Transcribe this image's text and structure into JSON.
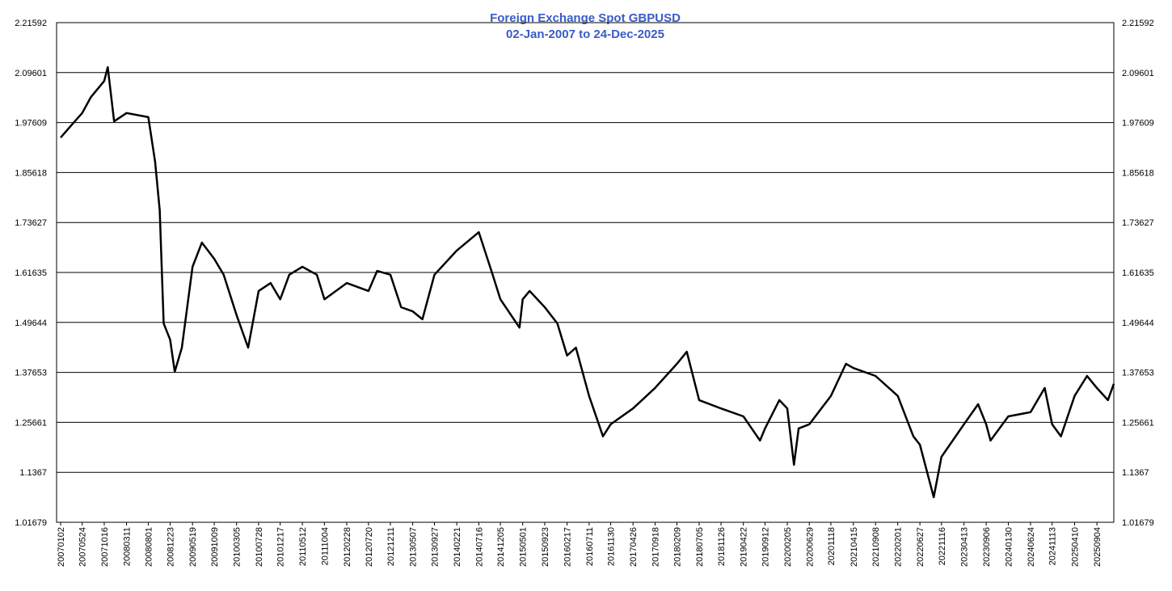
{
  "chart_data": {
    "type": "line",
    "title": "Foreign Exchange Spot GBPUSD",
    "subtitle": "02-Jan-2007 to 24-Dec-2025",
    "color": "#000000",
    "grid": true,
    "ylim": [
      1.01679,
      2.21592
    ],
    "yticks": [
      1.01679,
      1.1367,
      1.25661,
      1.37653,
      1.49644,
      1.61635,
      1.73627,
      1.85618,
      1.97609,
      2.09601,
      2.21592
    ],
    "xticks": [
      "20070102",
      "20070524",
      "20071016",
      "20080311",
      "20080801",
      "20081223",
      "20090519",
      "20091009",
      "20100305",
      "20100728",
      "20101217",
      "20110512",
      "20111004",
      "20120228",
      "20120720",
      "20121211",
      "20130507",
      "20130927",
      "20140221",
      "20140716",
      "20141205",
      "20150501",
      "20150923",
      "20160217",
      "20160711",
      "20161130",
      "20170426",
      "20170918",
      "20180209",
      "20180705",
      "20181126",
      "20190422",
      "20190912",
      "20200205",
      "20200629",
      "20201118",
      "20210415",
      "20210908",
      "20220201",
      "20220627",
      "20221116",
      "20230413",
      "20230906",
      "20240130",
      "20240624",
      "20241113",
      "20250410",
      "20250904"
    ],
    "x": [
      "20070102",
      "20070315",
      "20070524",
      "20070720",
      "20071016",
      "20071108",
      "20071220",
      "20080311",
      "20080801",
      "20080915",
      "20081015",
      "20081110",
      "20081223",
      "20090122",
      "20090310",
      "20090519",
      "20090720",
      "20091009",
      "20091210",
      "20100305",
      "20100520",
      "20100728",
      "20101015",
      "20101217",
      "20110215",
      "20110512",
      "20110815",
      "20111004",
      "20120228",
      "20120720",
      "20120915",
      "20121211",
      "20130220",
      "20130507",
      "20130710",
      "20130927",
      "20140221",
      "20140716",
      "20141015",
      "20141205",
      "20150410",
      "20150501",
      "20150615",
      "20150923",
      "20151215",
      "20160217",
      "20160415",
      "20160711",
      "20161010",
      "20161130",
      "20170426",
      "20170918",
      "20180209",
      "20180415",
      "20180705",
      "20181126",
      "20190422",
      "20190810",
      "20190912",
      "20191215",
      "20200205",
      "20200320",
      "20200420",
      "20200629",
      "20201118",
      "20210225",
      "20210415",
      "20210908",
      "20220201",
      "20220515",
      "20220627",
      "20220926",
      "20221116",
      "20230413",
      "20230715",
      "20230906",
      "20231005",
      "20240130",
      "20240624",
      "20240925",
      "20241113",
      "20250110",
      "20250410",
      "20250701",
      "20250904",
      "20251115",
      "20251224"
    ],
    "values": [
      1.94,
      1.97,
      1.999,
      2.037,
      2.076,
      2.109,
      1.979,
      1.999,
      1.989,
      1.882,
      1.766,
      1.494,
      1.455,
      1.378,
      1.436,
      1.63,
      1.688,
      1.649,
      1.611,
      1.514,
      1.436,
      1.572,
      1.591,
      1.552,
      1.611,
      1.63,
      1.611,
      1.552,
      1.591,
      1.572,
      1.62,
      1.611,
      1.533,
      1.523,
      1.504,
      1.611,
      1.669,
      1.713,
      1.611,
      1.552,
      1.484,
      1.552,
      1.572,
      1.533,
      1.494,
      1.417,
      1.436,
      1.32,
      1.223,
      1.252,
      1.29,
      1.339,
      1.397,
      1.426,
      1.31,
      1.29,
      1.271,
      1.213,
      1.242,
      1.31,
      1.29,
      1.155,
      1.242,
      1.252,
      1.32,
      1.397,
      1.387,
      1.368,
      1.32,
      1.223,
      1.203,
      1.077,
      1.174,
      1.252,
      1.3,
      1.252,
      1.213,
      1.271,
      1.281,
      1.339,
      1.252,
      1.223,
      1.32,
      1.368,
      1.339,
      1.31,
      1.349
    ]
  }
}
